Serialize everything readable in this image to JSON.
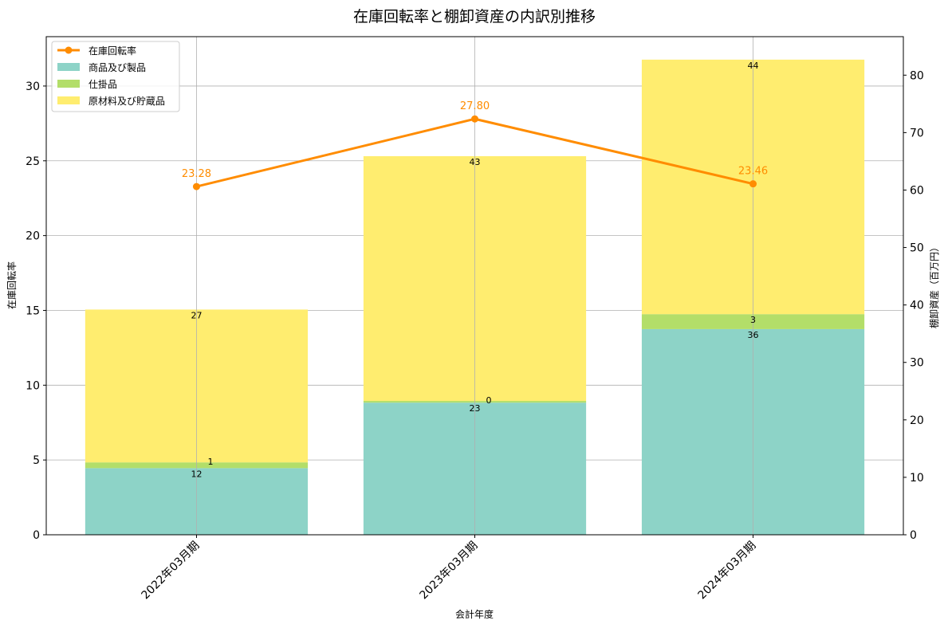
{
  "chart_data": {
    "type": "bar",
    "title": "在庫回転率と棚卸資産の内訳別推移",
    "xlabel": "会計年度",
    "ylabel_left": "在庫回転率",
    "ylabel_right": "棚卸資産（百万円）",
    "categories": [
      "2022年03月期",
      "2023年03月期",
      "2024年03月期"
    ],
    "ylim_left": [
      0,
      33.3
    ],
    "ylim_right": [
      0,
      86.7
    ],
    "yticks_left": [
      0,
      5,
      10,
      15,
      20,
      25,
      30
    ],
    "yticks_right": [
      0,
      10,
      20,
      30,
      40,
      50,
      60,
      70,
      80
    ],
    "grid": true,
    "legend_position": "top-left",
    "bar_series": [
      {
        "name": "商品及び製品",
        "color": "#8dd3c7",
        "values": [
          11.6,
          23.0,
          35.8
        ],
        "labels": [
          "12",
          "23",
          "36"
        ]
      },
      {
        "name": "仕掛品",
        "color": "#b3de69",
        "values": [
          1.0,
          0.3,
          2.6
        ],
        "labels": [
          "1",
          "0",
          "3"
        ]
      },
      {
        "name": "原材料及び貯蔵品",
        "color": "#ffed6f",
        "values": [
          26.6,
          42.6,
          44.3
        ],
        "labels": [
          "27",
          "43",
          "44"
        ]
      }
    ],
    "line_series": {
      "name": "在庫回転率",
      "color": "#ff8c00",
      "values": [
        23.28,
        27.8,
        23.46
      ],
      "labels": [
        "23.28",
        "27.80",
        "23.46"
      ]
    }
  }
}
